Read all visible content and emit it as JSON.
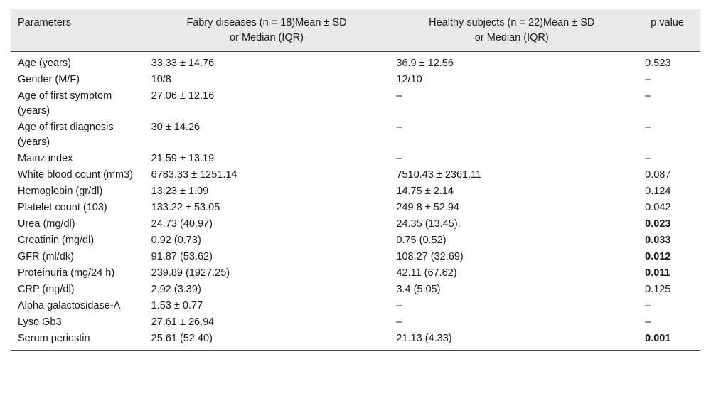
{
  "header": {
    "parameters": "Parameters",
    "fabry_line1": "Fabry diseases (n = 18)Mean ± SD",
    "fabry_line2": "or Median (IQR)",
    "healthy_line1": "Healthy subjects (n = 22)Mean ± SD",
    "healthy_line2": "or Median (IQR)",
    "p_value": "p value"
  },
  "rows": [
    {
      "param": "Age (years)",
      "fabry": "33.33 ± 14.76",
      "healthy": "36.9 ± 12.56",
      "p": "0.523",
      "bold": false
    },
    {
      "param": "Gender (M/F)",
      "fabry": "10/8",
      "healthy": "12/10",
      "p": "–",
      "bold": false
    },
    {
      "param": "Age of first symptom (years)",
      "fabry": "27.06 ± 12.16",
      "healthy": "–",
      "p": "–",
      "bold": false
    },
    {
      "param": "Age of first diagnosis (years)",
      "fabry": "30 ± 14.26",
      "healthy": "–",
      "p": "–",
      "bold": false
    },
    {
      "param": "Mainz index",
      "fabry": "21.59 ± 13.19",
      "healthy": "–",
      "p": "–",
      "bold": false
    },
    {
      "param": "White blood count (mm3)",
      "fabry": "6783.33 ± 1251.14",
      "healthy": "7510.43 ± 2361.11",
      "p": "0.087",
      "bold": false
    },
    {
      "param": "Hemoglobin (gr/dl)",
      "fabry": "13.23 ± 1.09",
      "healthy": "14.75 ± 2.14",
      "p": "0.124",
      "bold": false
    },
    {
      "param": "Platelet count (103)",
      "fabry": "133.22 ± 53.05",
      "healthy": "249.8 ± 52.94",
      "p": "0.042",
      "bold": false
    },
    {
      "param": "Urea (mg/dl)",
      "fabry": "24.73 (40.97)",
      "healthy": "24.35 (13.45).",
      "p": "0.023",
      "bold": true
    },
    {
      "param": "Creatinin (mg/dl)",
      "fabry": "0.92 (0.73)",
      "healthy": "0.75 (0.52)",
      "p": "0.033",
      "bold": true
    },
    {
      "param": "GFR (ml/dk)",
      "fabry": "91.87 (53.62)",
      "healthy": "108.27 (32.69)",
      "p": "0.012",
      "bold": true
    },
    {
      "param": "Proteinuria (mg/24 h)",
      "fabry": "239.89 (1927.25)",
      "healthy": "42.11 (67.62)",
      "p": "0.011",
      "bold": true
    },
    {
      "param": "CRP (mg/dl)",
      "fabry": "2.92 (3.39)",
      "healthy": "3.4 (5.05)",
      "p": "0.125",
      "bold": false
    },
    {
      "param": "Alpha galactosidase-A",
      "fabry": "1.53 ± 0.77",
      "healthy": "–",
      "p": "–",
      "bold": false
    },
    {
      "param": "Lyso Gb3",
      "fabry": "27.61 ± 26.94",
      "healthy": "–",
      "p": "–",
      "bold": false
    },
    {
      "param": "Serum periostin",
      "fabry": "25.61 (52.40)",
      "healthy": "21.13 (4.33)",
      "p": "0.001",
      "bold": true
    }
  ]
}
